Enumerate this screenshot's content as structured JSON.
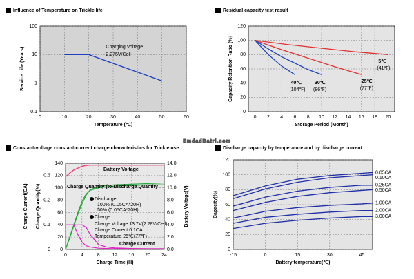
{
  "watermark": "EmdadBatri.com",
  "chart_data": [
    {
      "type": "line",
      "title": "Influence of Temperature on Trickle life",
      "xlabel": "Temperature (℃)",
      "ylabel": "Service Life (Years)",
      "x": [
        10,
        20,
        50
      ],
      "values": [
        10,
        10,
        1.2
      ],
      "color": "#1f3fbf",
      "xlim": [
        0,
        60
      ],
      "xticks": [
        0,
        10,
        20,
        30,
        40,
        50,
        60
      ],
      "ylim": [
        0.1,
        100
      ],
      "yticks": [
        0.1,
        1,
        10,
        100
      ],
      "log_y": true,
      "grid": true,
      "background": "#d4d4d4",
      "annotations": [
        "Charging Voltage",
        "2.275V/Cell"
      ]
    },
    {
      "type": "line",
      "title": "Residual capacity test result",
      "xlabel": "Storage Period (Month)",
      "ylabel": "Capacity Retention Ratio (%)",
      "xlim": [
        -1,
        21
      ],
      "xticks": [
        0,
        2,
        4,
        6,
        8,
        10,
        12,
        14,
        16,
        18,
        20
      ],
      "ylim": [
        0,
        120
      ],
      "yticks": [
        0,
        20,
        40,
        60,
        80,
        100,
        120
      ],
      "grid": true,
      "background": "#e4e4e4",
      "series": [
        {
          "name": "5℃",
          "fahrenheit": "(41℉)",
          "color": "#e03030",
          "x": [
            0,
            5,
            10,
            15,
            20
          ],
          "values": [
            100,
            94,
            89,
            84,
            80
          ]
        },
        {
          "name": "25℃",
          "fahrenheit": "(77℉)",
          "color": "#e03030",
          "x": [
            0,
            4,
            8,
            12,
            16
          ],
          "values": [
            100,
            87,
            75,
            63,
            52
          ]
        },
        {
          "name": "30℃",
          "fahrenheit": "(86℉)",
          "color": "#1f3fbf",
          "x": [
            0,
            2,
            4,
            6,
            8,
            10
          ],
          "values": [
            100,
            88,
            77,
            68,
            59,
            52
          ]
        },
        {
          "name": "40℃",
          "fahrenheit": "(104℉)",
          "color": "#1f3fbf",
          "x": [
            0,
            2,
            4,
            6
          ],
          "values": [
            100,
            80,
            64,
            52
          ]
        }
      ]
    },
    {
      "type": "multiaxis",
      "title": "Constant-voltage constant-current charge characteristics for Trickle use",
      "xlabel": "Charge Time (H)",
      "ylabel": "Charge Current(CA)",
      "y2label": "Charge Quantity(%)",
      "y3label": "Battery Voltage(V)",
      "xlim": [
        0,
        24
      ],
      "xticks": [
        0,
        4,
        8,
        12,
        16,
        20,
        24
      ],
      "ylim": [
        0,
        0.35
      ],
      "yticks": [
        0,
        0.1,
        0.2,
        0.3
      ],
      "y2lim": [
        0,
        140
      ],
      "y2ticks": [
        0,
        20,
        40,
        60,
        80,
        100,
        120,
        140
      ],
      "y3lim": [
        0,
        14
      ],
      "y3ticks": [
        {
          "value": 0,
          "label": "0.0"
        },
        {
          "value": 2,
          "label": "2.0"
        },
        {
          "value": 4,
          "label": "4.0"
        },
        {
          "value": 6,
          "label": "6.0"
        },
        {
          "value": 8,
          "label": "8.0"
        },
        {
          "value": 10,
          "label": "10.0"
        },
        {
          "value": 12,
          "label": "12.0"
        },
        {
          "value": 14,
          "label": "14.0"
        }
      ],
      "grid": true,
      "background": "#e8e8e8",
      "x": [
        0,
        1,
        2,
        3,
        4,
        5,
        6,
        8,
        10,
        12,
        16,
        20,
        24
      ],
      "voltage": {
        "name": "Battery Voltage",
        "color": "#e8417c",
        "values": [
          11.8,
          12.4,
          12.9,
          13.2,
          13.5,
          13.65,
          13.7,
          13.7,
          13.7,
          13.7,
          13.7,
          13.7,
          13.7
        ]
      },
      "quantity_label": "Charge Quantity (to-Discharge Quantity",
      "quantity_color": "#27a83c",
      "current_label": "Charge Current",
      "current_color": "#e020c0",
      "levels": [
        {
          "name": "100% (0.05CA*20H)",
          "quantity": [
            0,
            18,
            38,
            57,
            74,
            88,
            97,
            102,
            104,
            105,
            106,
            107,
            108
          ],
          "current": [
            0.1,
            0.1,
            0.1,
            0.1,
            0.1,
            0.09,
            0.06,
            0.02,
            0.01,
            0.006,
            0.004,
            0.003,
            0.003
          ]
        },
        {
          "name": "50% (0.05CA*20H)",
          "quantity": [
            0,
            20,
            40,
            60,
            78,
            90,
            96,
            100,
            102,
            103,
            104,
            105,
            105
          ],
          "current": [
            0.1,
            0.1,
            0.1,
            0.06,
            0.03,
            0.015,
            0.01,
            0.005,
            0.004,
            0.003,
            0.003,
            0.003,
            0.003
          ]
        }
      ],
      "discharge_heading": "Discharge",
      "charge_heading": "Charge",
      "conditions": [
        "Charge Voltage   13.7V(2.28V/Cell)",
        "Charge Current   0.1CA",
        "Temperature   25℃(77℉)"
      ]
    },
    {
      "type": "line",
      "title": "Discharge capacity by temperature and by discharge current",
      "xlabel": "Battery temperature(℃)",
      "ylabel": "Capacity(%)",
      "xlim": [
        -15,
        50
      ],
      "xticks": [
        -15,
        0,
        15,
        30,
        45
      ],
      "ylim": [
        0,
        120
      ],
      "yticks": [
        0,
        20,
        40,
        60,
        80,
        100,
        120
      ],
      "grid": true,
      "background": "#e4e4e4",
      "x": [
        -15,
        0,
        15,
        30,
        45,
        50
      ],
      "series": [
        {
          "name": "0.05CA",
          "color": "#1f2fa8",
          "values": [
            72,
            85,
            94,
            99,
            102,
            103
          ]
        },
        {
          "name": "0.10CA",
          "color": "#1f2fa8",
          "values": [
            68,
            81,
            90,
            96,
            99,
            100
          ]
        },
        {
          "name": "0.25CA",
          "color": "#1f2fa8",
          "values": [
            58,
            70,
            78,
            83,
            86,
            86
          ]
        },
        {
          "name": "0.50CA",
          "color": "#1f2fa8",
          "values": [
            52,
            63,
            71,
            76,
            79,
            80
          ]
        },
        {
          "name": "1.00CA",
          "color": "#1f2fa8",
          "values": [
            42,
            51,
            56,
            59,
            61,
            62
          ]
        },
        {
          "name": "2.00CA",
          "color": "#1f2fa8",
          "values": [
            35,
            43,
            47,
            50,
            52,
            52
          ]
        },
        {
          "name": "3.00CA",
          "color": "#1f2fa8",
          "values": [
            28,
            35,
            39,
            42,
            44,
            44
          ]
        }
      ]
    }
  ]
}
